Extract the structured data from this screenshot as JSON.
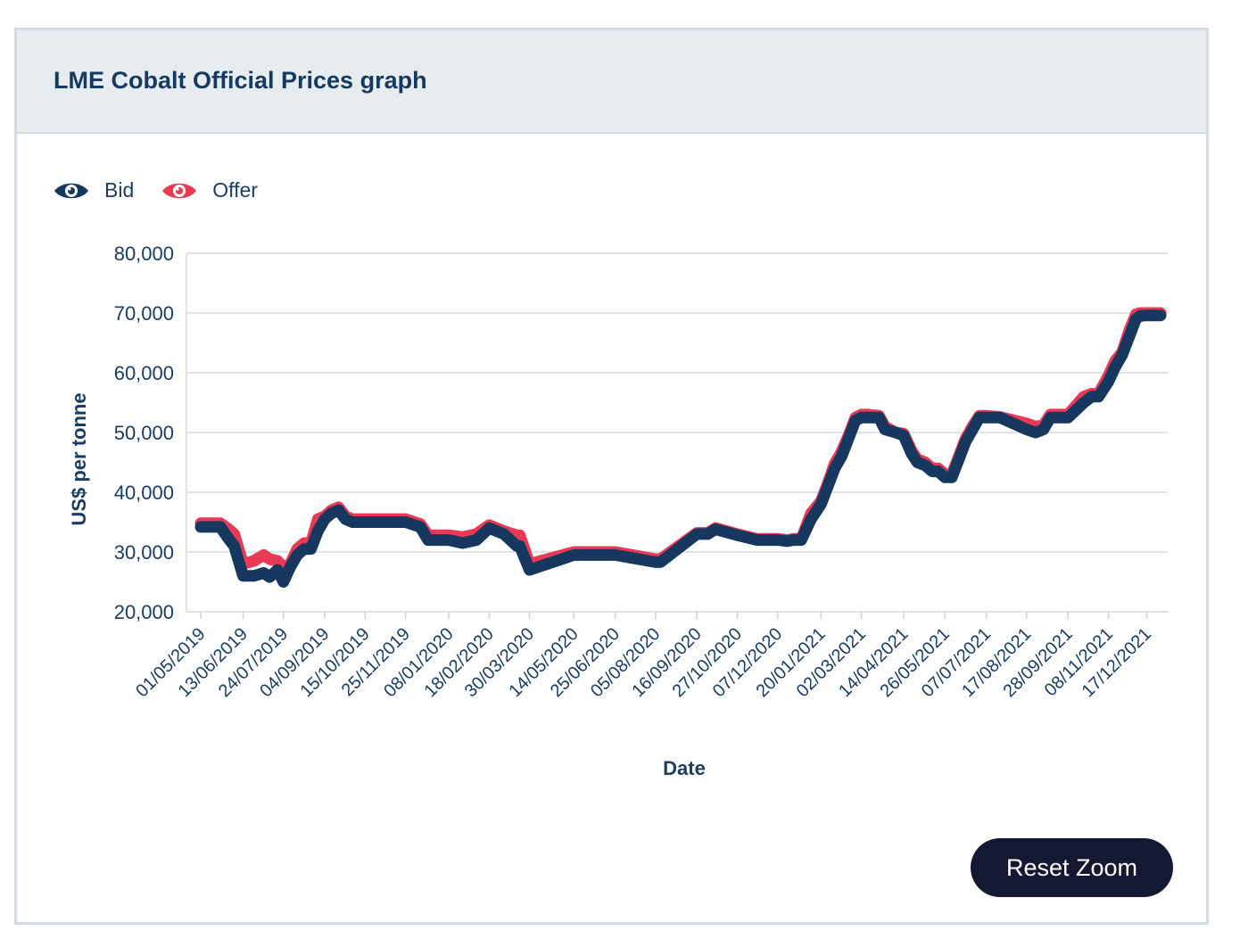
{
  "card": {
    "title": "LME Cobalt Official Prices graph"
  },
  "legend": [
    {
      "label": "Bid",
      "color": "#16385e",
      "icon": "eye-icon"
    },
    {
      "label": "Offer",
      "color": "#e83a55",
      "icon": "eye-icon"
    }
  ],
  "reset_zoom_label": "Reset Zoom",
  "chart_data": {
    "type": "line",
    "xlabel": "Date",
    "ylabel": "US$ per tonne",
    "ylim": [
      20000,
      80000
    ],
    "yticks": [
      20000,
      30000,
      40000,
      50000,
      60000,
      70000,
      80000
    ],
    "ytick_labels": [
      "20,000",
      "30,000",
      "40,000",
      "50,000",
      "60,000",
      "70,000",
      "80,000"
    ],
    "xtick_labels": [
      "01/05/2019",
      "13/06/2019",
      "24/07/2019",
      "04/09/2019",
      "15/10/2019",
      "25/11/2019",
      "08/01/2020",
      "18/02/2020",
      "30/03/2020",
      "14/05/2020",
      "25/06/2020",
      "05/08/2020",
      "16/09/2020",
      "27/10/2020",
      "07/12/2020",
      "20/01/2021",
      "02/03/2021",
      "14/04/2021",
      "26/05/2021",
      "07/07/2021",
      "17/08/2021",
      "28/09/2021",
      "08/11/2021",
      "17/12/2021"
    ],
    "grid": true,
    "series": [
      {
        "name": "Bid",
        "color": "#16385e",
        "x": [
          "01/05/2019",
          "21/05/2019",
          "28/05/2019",
          "04/06/2019",
          "13/06/2019",
          "24/06/2019",
          "04/07/2019",
          "10/07/2019",
          "18/07/2019",
          "24/07/2019",
          "31/07/2019",
          "07/08/2019",
          "14/08/2019",
          "21/08/2019",
          "28/08/2019",
          "04/09/2019",
          "11/09/2019",
          "18/09/2019",
          "25/09/2019",
          "02/10/2019",
          "09/10/2019",
          "15/10/2019",
          "25/11/2019",
          "10/12/2019",
          "18/12/2019",
          "08/01/2020",
          "22/01/2020",
          "05/02/2020",
          "18/02/2020",
          "04/03/2020",
          "17/03/2020",
          "20/03/2020",
          "30/03/2020",
          "14/05/2020",
          "25/06/2020",
          "05/08/2020",
          "10/08/2020",
          "16/09/2020",
          "27/09/2020",
          "05/10/2020",
          "27/10/2020",
          "16/11/2020",
          "07/12/2020",
          "17/12/2020",
          "23/12/2020",
          "31/12/2020",
          "10/01/2021",
          "20/01/2021",
          "27/01/2021",
          "03/02/2021",
          "10/02/2021",
          "17/02/2021",
          "24/02/2021",
          "02/03/2021",
          "08/03/2021",
          "20/03/2021",
          "26/03/2021",
          "06/04/2021",
          "14/04/2021",
          "22/04/2021",
          "28/04/2021",
          "06/05/2021",
          "13/05/2021",
          "19/05/2021",
          "26/05/2021",
          "02/06/2021",
          "09/06/2021",
          "16/06/2021",
          "23/06/2021",
          "30/06/2021",
          "07/07/2021",
          "21/07/2021",
          "17/08/2021",
          "26/08/2021",
          "03/09/2021",
          "10/09/2021",
          "17/09/2021",
          "28/09/2021",
          "14/10/2021",
          "22/10/2021",
          "29/10/2021",
          "08/11/2021",
          "15/11/2021",
          "22/11/2021",
          "29/11/2021",
          "06/12/2021",
          "10/12/2021",
          "17/12/2021",
          "31/12/2021"
        ],
        "values": [
          34200,
          34200,
          32500,
          31000,
          26000,
          26000,
          26500,
          25800,
          27000,
          25000,
          27500,
          29500,
          30500,
          30500,
          33500,
          35500,
          36500,
          37000,
          35500,
          35000,
          35000,
          35000,
          35000,
          34200,
          32000,
          32000,
          31500,
          32000,
          34000,
          33000,
          31000,
          31000,
          27000,
          29500,
          29500,
          28300,
          28300,
          33000,
          33000,
          33800,
          32800,
          32000,
          32000,
          31800,
          32000,
          32000,
          35500,
          38000,
          41000,
          44000,
          46000,
          49000,
          52000,
          52500,
          52500,
          52500,
          50500,
          50000,
          49500,
          46500,
          45000,
          44500,
          43500,
          43500,
          42500,
          42500,
          45500,
          48500,
          50500,
          52500,
          52500,
          52500,
          50500,
          50000,
          50500,
          52500,
          52500,
          52500,
          55000,
          56000,
          56000,
          58500,
          61000,
          63000,
          66000,
          69000,
          69500,
          69600,
          69600
        ]
      },
      {
        "name": "Offer",
        "color": "#e83a55",
        "x": [
          "01/05/2019",
          "21/05/2019",
          "28/05/2019",
          "04/06/2019",
          "13/06/2019",
          "24/06/2019",
          "04/07/2019",
          "10/07/2019",
          "18/07/2019",
          "24/07/2019",
          "31/07/2019",
          "07/08/2019",
          "14/08/2019",
          "21/08/2019",
          "28/08/2019",
          "04/09/2019",
          "11/09/2019",
          "18/09/2019",
          "25/09/2019",
          "02/10/2019",
          "09/10/2019",
          "15/10/2019",
          "25/11/2019",
          "10/12/2019",
          "18/12/2019",
          "08/01/2020",
          "22/01/2020",
          "05/02/2020",
          "18/02/2020",
          "04/03/2020",
          "17/03/2020",
          "20/03/2020",
          "30/03/2020",
          "14/05/2020",
          "25/06/2020",
          "05/08/2020",
          "10/08/2020",
          "16/09/2020",
          "27/09/2020",
          "05/10/2020",
          "27/10/2020",
          "16/11/2020",
          "07/12/2020",
          "17/12/2020",
          "23/12/2020",
          "31/12/2020",
          "10/01/2021",
          "20/01/2021",
          "27/01/2021",
          "03/02/2021",
          "10/02/2021",
          "17/02/2021",
          "24/02/2021",
          "02/03/2021",
          "08/03/2021",
          "20/03/2021",
          "26/03/2021",
          "06/04/2021",
          "14/04/2021",
          "22/04/2021",
          "28/04/2021",
          "06/05/2021",
          "13/05/2021",
          "19/05/2021",
          "26/05/2021",
          "02/06/2021",
          "09/06/2021",
          "16/06/2021",
          "23/06/2021",
          "30/06/2021",
          "07/07/2021",
          "21/07/2021",
          "17/08/2021",
          "26/08/2021",
          "03/09/2021",
          "10/09/2021",
          "17/09/2021",
          "28/09/2021",
          "14/10/2021",
          "22/10/2021",
          "29/10/2021",
          "08/11/2021",
          "15/11/2021",
          "22/11/2021",
          "29/11/2021",
          "06/12/2021",
          "10/12/2021",
          "17/12/2021",
          "31/12/2021"
        ],
        "values": [
          34800,
          34800,
          34000,
          33000,
          28000,
          28500,
          29500,
          28800,
          28500,
          27500,
          28000,
          30500,
          31500,
          31500,
          35500,
          36000,
          37000,
          37500,
          36000,
          35500,
          35500,
          35500,
          35500,
          34700,
          32800,
          32800,
          32500,
          33000,
          34500,
          33500,
          32800,
          32800,
          28000,
          30000,
          30000,
          28800,
          28800,
          33200,
          33200,
          34000,
          33000,
          32200,
          32200,
          32000,
          32200,
          32200,
          36500,
          38500,
          41500,
          44800,
          46800,
          49500,
          52500,
          53000,
          53000,
          52800,
          51000,
          50000,
          49800,
          47000,
          45500,
          45000,
          44000,
          44000,
          43000,
          43000,
          46000,
          49000,
          51000,
          52800,
          52800,
          52600,
          51500,
          51000,
          51200,
          53000,
          53000,
          53000,
          56000,
          56500,
          56500,
          59500,
          62000,
          63500,
          67000,
          69800,
          70000,
          70000,
          70000
        ]
      }
    ]
  }
}
